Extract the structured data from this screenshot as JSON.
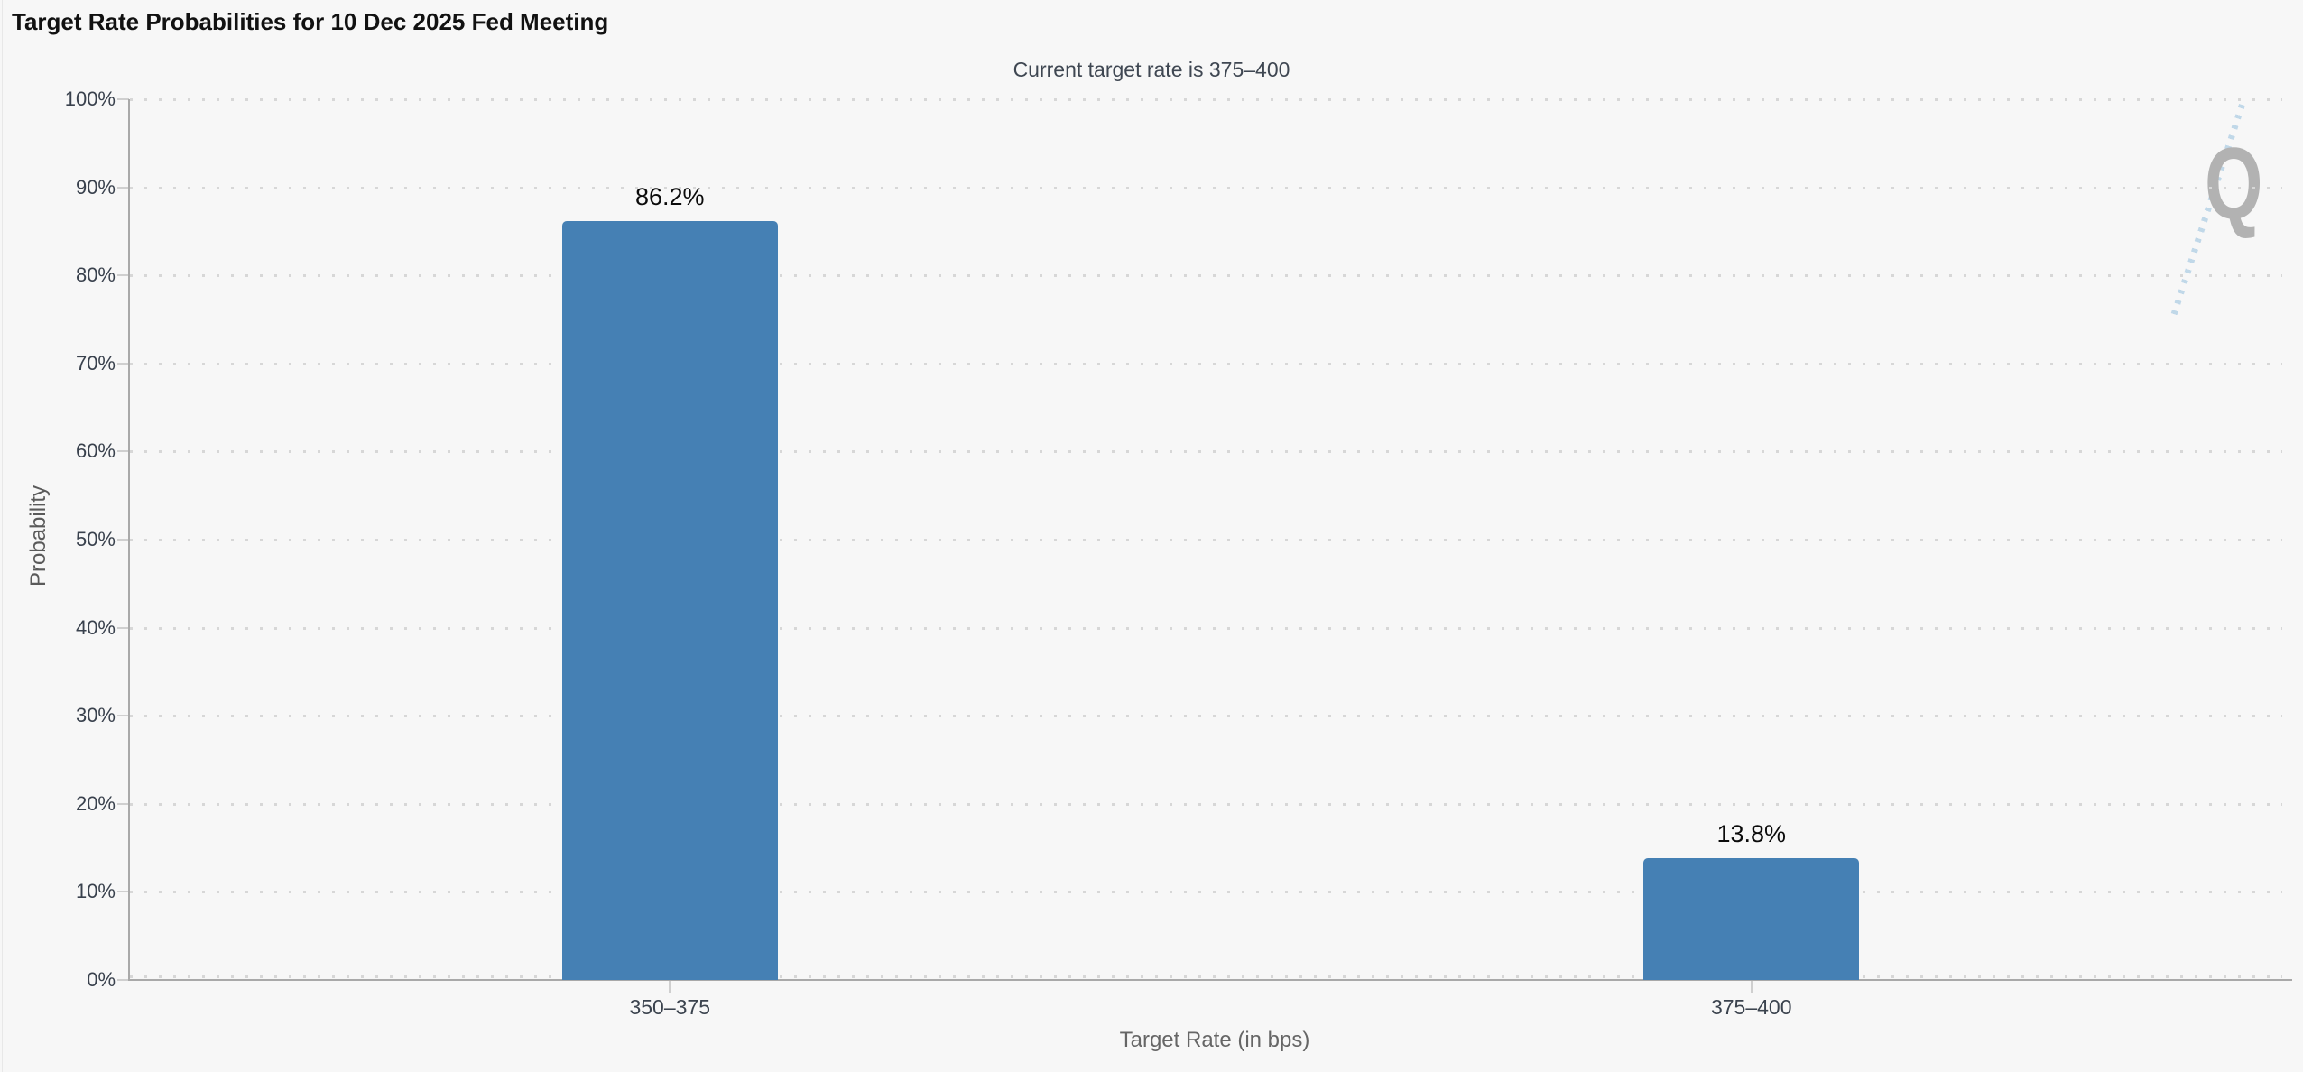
{
  "header": {
    "menu_icon": "hamburger-menu-icon"
  },
  "watermark": {
    "letter": "Q"
  },
  "chart_data": {
    "type": "bar",
    "title": "Target Rate Probabilities for 10 Dec 2025 Fed Meeting",
    "subtitle": "Current target rate is 375–400",
    "categories": [
      "350–375",
      "375–400"
    ],
    "values": [
      86.2,
      13.8
    ],
    "value_labels": [
      "86.2%",
      "13.8%"
    ],
    "xlabel": "Target Rate (in bps)",
    "ylabel": "Probability",
    "ylim": [
      0,
      100
    ],
    "ytick_step": 10,
    "ytick_labels": [
      "0%",
      "10%",
      "20%",
      "30%",
      "40%",
      "50%",
      "60%",
      "70%",
      "80%",
      "90%",
      "100%"
    ],
    "legend": "none",
    "grid": "horizontal-dotted",
    "bar_color": "#4580b4"
  },
  "colors": {
    "background": "#f7f7f7",
    "bar": "#4580b4",
    "axis_line": "#a9a9a9",
    "grid_dot": "#d7d7d7",
    "tick_mark": "#cfcfcf",
    "title_text": "#111111",
    "subtitle_text": "#3f4752",
    "tick_label_text": "#39414d",
    "axis_title_text": "#666666",
    "value_label_text": "#0b0b0b",
    "menu_icon": "#58595b",
    "watermark_gray": "#b2b2b2",
    "watermark_blue": "#b7d2e6"
  }
}
